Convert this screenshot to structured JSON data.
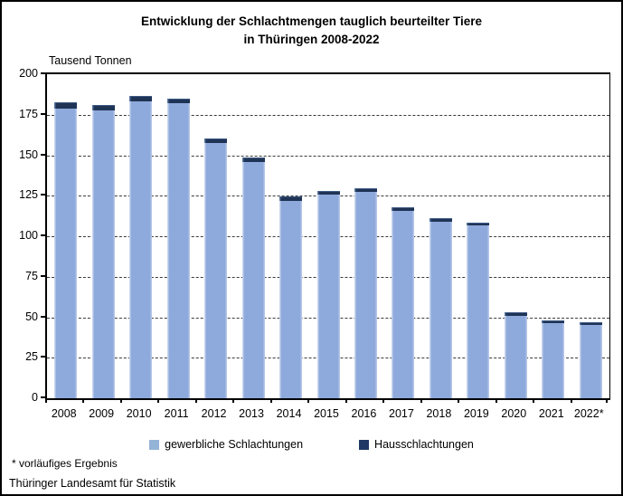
{
  "title": {
    "line1": "Entwicklung der Schlachtmengen tauglich beurteilter Tiere",
    "line2": "in Thüringen 2008-2022"
  },
  "axis_unit": "Tausend Tonnen",
  "footnote": "* vorläufiges Ergebnis",
  "source": "Thüringer Landesamt für Statistik",
  "colors": {
    "bar_light_blue": "#8EA9DB",
    "bar_dark_navy": "#1F3455",
    "legend_light": "#95B3D7",
    "legend_dark": "#1F3864",
    "grid": "#3a3a3a"
  },
  "chart_data": {
    "type": "bar",
    "stacked": true,
    "title": "Entwicklung der Schlachtmengen tauglich beurteilter Tiere in Thüringen 2008-2022",
    "xlabel": "",
    "ylabel": "Tausend Tonnen",
    "ylim": [
      0,
      200
    ],
    "yticks": [
      0,
      25,
      50,
      75,
      100,
      125,
      150,
      175,
      200
    ],
    "grid": "horizontal-dashed",
    "legend_position": "bottom",
    "categories": [
      "2008",
      "2009",
      "2010",
      "2011",
      "2012",
      "2013",
      "2014",
      "2015",
      "2016",
      "2017",
      "2018",
      "2019",
      "2020",
      "2021",
      "2022*"
    ],
    "series": [
      {
        "name": "gewerbliche Schlachtungen",
        "color": "#8EA9DB",
        "values": [
          179.0,
          177.5,
          183.5,
          182.0,
          157.5,
          146.0,
          122.0,
          125.5,
          127.5,
          115.5,
          109.0,
          106.5,
          51.0,
          46.5,
          45.5
        ]
      },
      {
        "name": "Hausschlachtungen",
        "color": "#1F3455",
        "values": [
          3.5,
          3.3,
          3.3,
          3.0,
          3.0,
          2.8,
          2.5,
          2.5,
          2.3,
          2.2,
          2.2,
          2.0,
          2.0,
          1.5,
          1.5
        ]
      }
    ],
    "totals": [
      182.5,
      180.8,
      186.8,
      185.0,
      160.5,
      148.8,
      124.5,
      128.0,
      129.8,
      117.7,
      111.2,
      108.5,
      53.0,
      48.0,
      47.0
    ]
  }
}
